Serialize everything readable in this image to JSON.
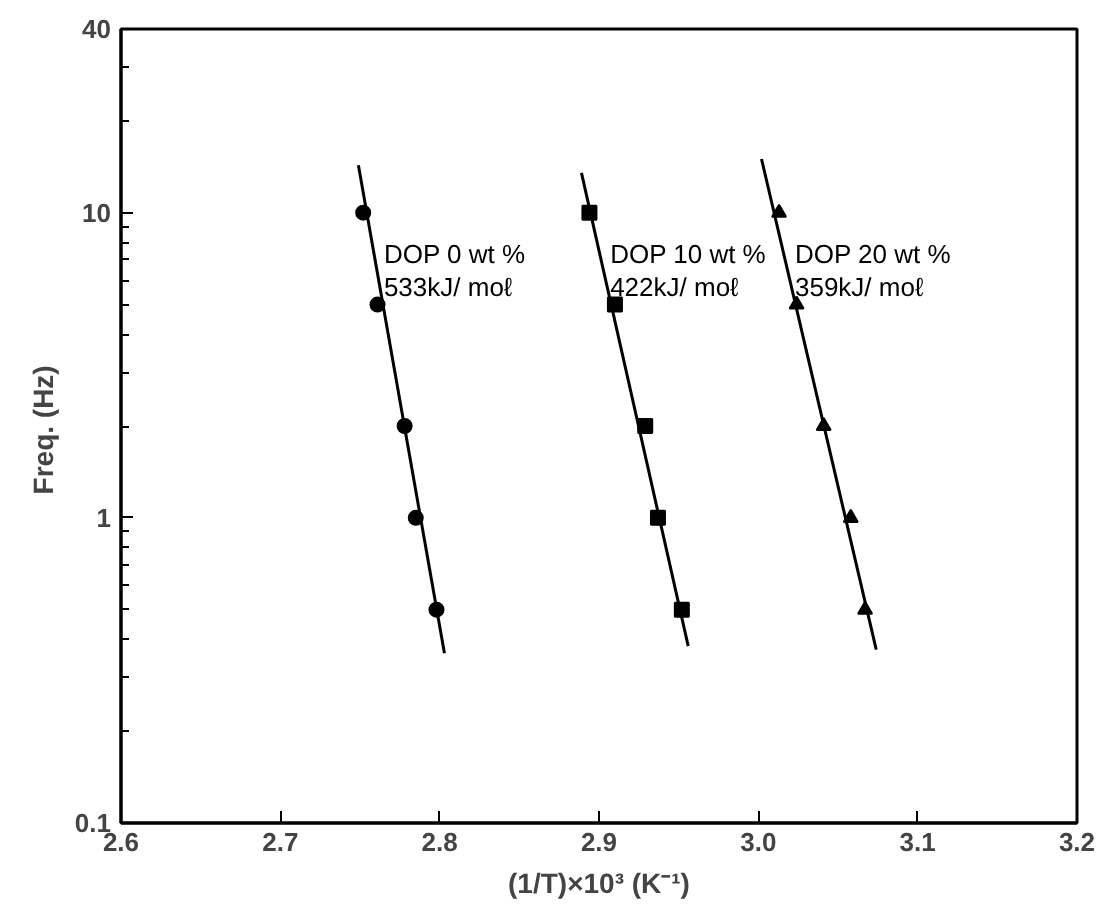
{
  "chart_data": {
    "type": "scatter",
    "xlabel": "(1/T)×10³ (K⁻¹)",
    "ylabel": "Freq.  (Hz)",
    "log": "y",
    "grid": false,
    "xlim": [
      2.6,
      3.2
    ],
    "xticks": [
      {
        "value": 2.6,
        "label": "2.6"
      },
      {
        "value": 2.7,
        "label": "2.7"
      },
      {
        "value": 2.8,
        "label": "2.8"
      },
      {
        "value": 2.9,
        "label": "2.9"
      },
      {
        "value": 3.0,
        "label": "3.0"
      },
      {
        "value": 3.1,
        "label": "3.1"
      },
      {
        "value": 3.2,
        "label": "3.2"
      }
    ],
    "ylim": [
      0.1,
      40
    ],
    "yticks": [
      0.1,
      {
        "value": 0.2,
        "label": null
      },
      {
        "value": 0.3,
        "label": null
      },
      {
        "value": 0.4,
        "label": null
      },
      {
        "value": 0.5,
        "label": null
      },
      {
        "value": 0.6,
        "label": null
      },
      {
        "value": 0.7,
        "label": null
      },
      {
        "value": 0.8,
        "label": null
      },
      {
        "value": 0.9,
        "label": null
      },
      1,
      {
        "value": 2,
        "label": null
      },
      {
        "value": 3,
        "label": null
      },
      {
        "value": 4,
        "label": null
      },
      {
        "value": 5,
        "label": null
      },
      {
        "value": 6,
        "label": null
      },
      {
        "value": 7,
        "label": null
      },
      {
        "value": 8,
        "label": null
      },
      {
        "value": 9,
        "label": null
      },
      10,
      {
        "value": 20,
        "label": null
      },
      {
        "value": 30,
        "label": null
      },
      40
    ],
    "series": [
      {
        "marker": "circle",
        "color": "#000000",
        "x": [
          2.752,
          2.761,
          2.778,
          2.785,
          2.798
        ],
        "values": [
          10,
          5,
          2,
          1,
          0.5
        ]
      },
      {
        "marker": "square",
        "color": "#000000",
        "x": [
          2.894,
          2.91,
          2.929,
          2.937,
          2.952
        ],
        "values": [
          10,
          5,
          2,
          1,
          0.5
        ]
      },
      {
        "marker": "triangle",
        "color": "#000000",
        "x": [
          3.013,
          3.024,
          3.041,
          3.058,
          3.067
        ],
        "values": [
          10,
          5,
          2,
          1,
          0.5
        ]
      },
      {
        "type": "line",
        "marker": "none",
        "line_style": "solid",
        "color": "#000000",
        "x": [
          2.749,
          2.803
        ],
        "values": [
          14.3,
          0.36
        ]
      },
      {
        "type": "line",
        "marker": "none",
        "line_style": "solid",
        "color": "#000000",
        "x": [
          2.889,
          2.956
        ],
        "values": [
          13.5,
          0.38
        ]
      },
      {
        "type": "line",
        "marker": "none",
        "line_style": "solid",
        "color": "#000000",
        "x": [
          3.002,
          3.074
        ],
        "values": [
          15,
          0.37
        ]
      }
    ],
    "annotations": [
      {
        "text": "DOP 0 wt %",
        "x": 2.765,
        "y": 7.3
      },
      {
        "text": "533kJ/ moℓ",
        "x": 2.765,
        "y": 5.7
      },
      {
        "text": "DOP 10 wt %",
        "x": 2.907,
        "y": 7.3
      },
      {
        "text": "422kJ/ moℓ",
        "x": 2.907,
        "y": 5.7
      },
      {
        "text": "DOP 20 wt %",
        "x": 3.023,
        "y": 7.3
      },
      {
        "text": "359kJ/ moℓ",
        "x": 3.023,
        "y": 5.7
      }
    ]
  }
}
